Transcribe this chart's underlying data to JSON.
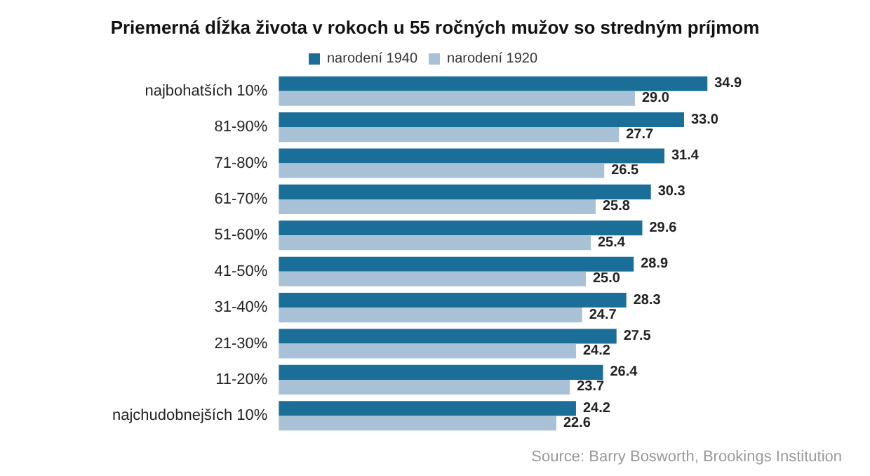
{
  "chart_data": {
    "type": "bar",
    "orientation": "horizontal",
    "title": "Priemerná dĺžka života v rokoch u 55 ročných mužov so stredným príjmom",
    "categories": [
      "najbohatších 10%",
      "81-90%",
      "71-80%",
      "61-70%",
      "51-60%",
      "41-50%",
      "31-40%",
      "21-30%",
      "11-20%",
      "najchudobnejších 10%"
    ],
    "series": [
      {
        "name": "narodení 1940",
        "color": "#1a6e98",
        "values": [
          34.9,
          33.0,
          31.4,
          30.3,
          29.6,
          28.9,
          28.3,
          27.5,
          26.4,
          24.2
        ],
        "value_labels": [
          "34.9",
          "33.0",
          "31.4",
          "30.3",
          "29.6",
          "28.9",
          "28.3",
          "27.5",
          "26.4",
          "24.2"
        ]
      },
      {
        "name": "narodení 1920",
        "color": "#a9c1d6",
        "values": [
          29.0,
          27.7,
          26.5,
          25.8,
          25.4,
          25.0,
          24.7,
          24.2,
          23.7,
          22.6
        ],
        "value_labels": [
          "29.0",
          "27.7",
          "26.5",
          "25.8",
          "25.4",
          "25.0",
          "24.7",
          "24.2",
          "23.7",
          "22.6"
        ]
      }
    ],
    "legend": "top",
    "grid": false,
    "annotations": [
      "Source: Barry Bosworth, Brookings Institution"
    ]
  }
}
